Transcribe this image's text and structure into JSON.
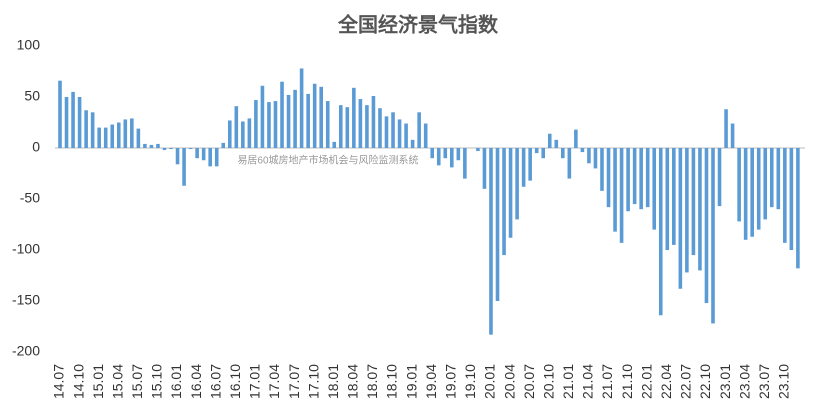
{
  "chart_data": {
    "type": "bar",
    "title": "全国经济景气指数",
    "annotation": "易居60城房地产市场机会与风险监测系统",
    "color": "#5b9bd5",
    "ylim": [
      -200,
      100
    ],
    "yticks": [
      -200,
      -150,
      -100,
      -50,
      0,
      50,
      100
    ],
    "grid": false,
    "categories": [
      "14.07",
      null,
      null,
      "14.10",
      null,
      null,
      "15.01",
      null,
      null,
      "15.04",
      null,
      null,
      "15.07",
      null,
      null,
      "15.10",
      null,
      null,
      "16.01",
      null,
      null,
      "16.04",
      null,
      null,
      "16.07",
      null,
      null,
      "16.10",
      null,
      null,
      "17.01",
      null,
      null,
      "17.04",
      null,
      null,
      "17.07",
      null,
      null,
      "17.10",
      null,
      null,
      "18.01",
      null,
      null,
      "18.04",
      null,
      null,
      "18.07",
      null,
      null,
      "18.10",
      null,
      null,
      "19.01",
      null,
      null,
      "19.04",
      null,
      null,
      "19.07",
      null,
      null,
      "19.10",
      null,
      null,
      "20.01",
      null,
      null,
      "20.04",
      null,
      null,
      "20.07",
      null,
      null,
      "20.10",
      null,
      null,
      "21.01",
      null,
      null,
      "21.04",
      null,
      null,
      "21.07",
      null,
      null,
      "21.10",
      null,
      null,
      "22.01",
      null,
      null,
      "22.04",
      null,
      null,
      "22.07",
      null,
      null,
      "22.10",
      null,
      null,
      "23.01",
      null,
      null,
      "23.04",
      null,
      null,
      "23.07",
      null,
      null,
      "23.10",
      null,
      null
    ],
    "values": [
      66,
      50,
      55,
      50,
      37,
      35,
      20,
      20,
      23,
      25,
      28,
      29,
      19,
      4,
      3,
      4,
      -2,
      -1,
      -16,
      -37,
      -1,
      -10,
      -12,
      -18,
      -18,
      5,
      27,
      41,
      26,
      29,
      47,
      61,
      45,
      46,
      65,
      52,
      57,
      78,
      53,
      63,
      60,
      46,
      6,
      42,
      40,
      59,
      48,
      42,
      51,
      39,
      31,
      35,
      28,
      24,
      8,
      35,
      24,
      -10,
      -17,
      -10,
      -19,
      -12,
      -30,
      0,
      -3,
      -40,
      -183,
      -150,
      -105,
      -88,
      -70,
      -38,
      -32,
      -5,
      -10,
      14,
      8,
      -10,
      -30,
      18,
      -4,
      -15,
      -20,
      -42,
      -58,
      -82,
      -93,
      -62,
      -55,
      -60,
      -58,
      -80,
      -164,
      -100,
      -95,
      -138,
      -122,
      -105,
      -120,
      -152,
      -172,
      -57,
      38,
      24,
      -72,
      -90,
      -87,
      -80,
      -70,
      -58,
      -60,
      -93,
      -100,
      -118
    ]
  }
}
